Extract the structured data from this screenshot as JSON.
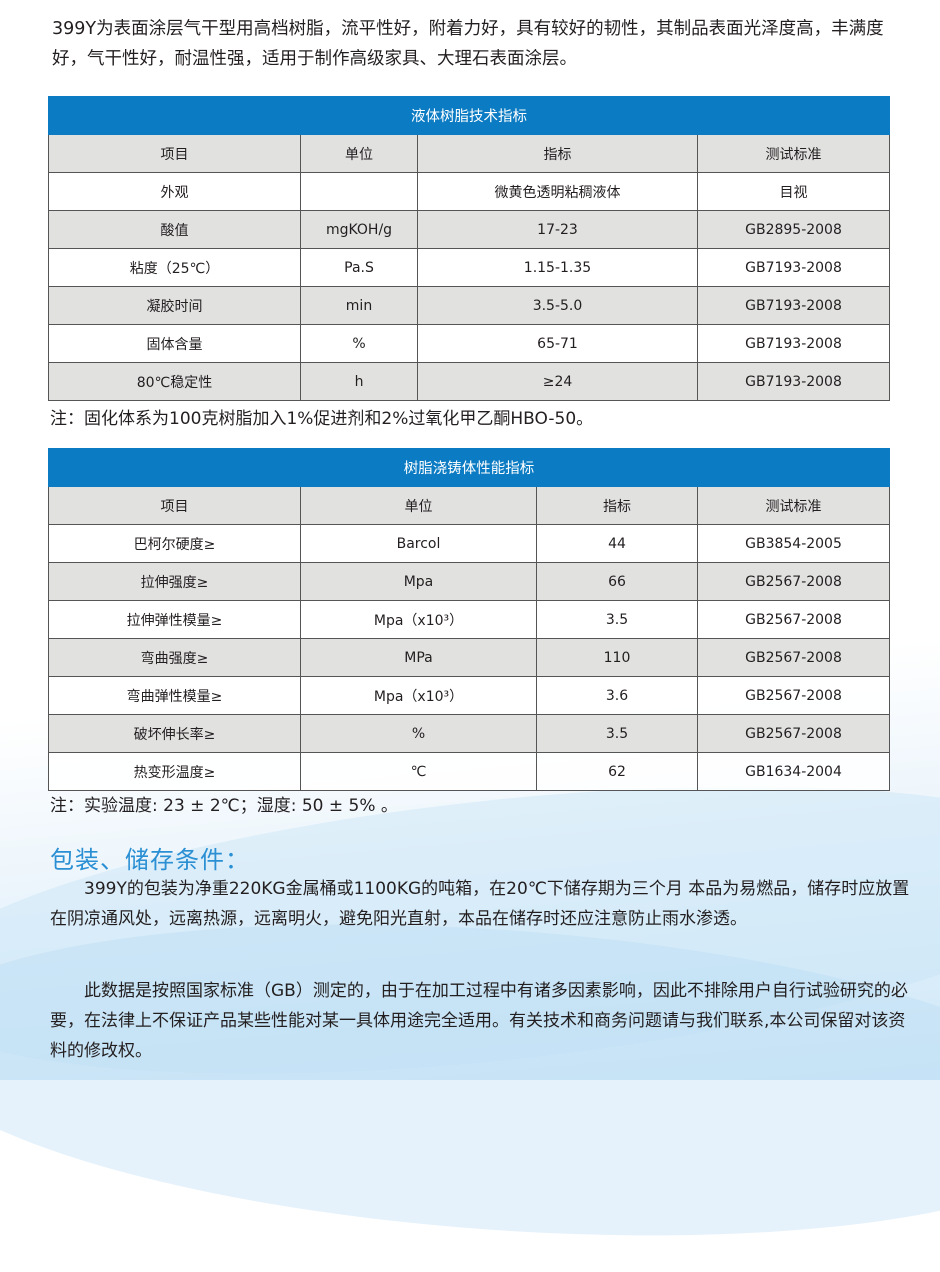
{
  "intro": "399Y为表面涂层气干型用高档树脂，流平性好，附着力好，具有较好的韧性，其制品表面光泽度高，丰满度好，气干性好，耐温性强，适用于制作高级家具、大理石表面涂层。",
  "table1": {
    "title": "液体树脂技术指标",
    "headers": [
      "项目",
      "单位",
      "指标",
      "测试标准"
    ],
    "rows": [
      [
        "外观",
        "",
        "微黄色透明粘稠液体",
        "目视"
      ],
      [
        "酸值",
        "mgKOH/g",
        "17-23",
        "GB2895-2008"
      ],
      [
        "粘度（25℃）",
        "Pa.S",
        "1.15-1.35",
        "GB7193-2008"
      ],
      [
        "凝胶时间",
        "min",
        "3.5-5.0",
        "GB7193-2008"
      ],
      [
        "固体含量",
        "%",
        "65-71",
        "GB7193-2008"
      ],
      [
        "80℃稳定性",
        "h",
        "≥24",
        "GB7193-2008"
      ]
    ],
    "note": "注：固化体系为100克树脂加入1%促进剂和2%过氧化甲乙酮HBO-50。"
  },
  "table2": {
    "title": "树脂浇铸体性能指标",
    "headers": [
      "项目",
      "单位",
      "指标",
      "测试标准"
    ],
    "rows": [
      [
        "巴柯尔硬度≥",
        "Barcol",
        "44",
        "GB3854-2005"
      ],
      [
        "拉伸强度≥",
        "Mpa",
        "66",
        "GB2567-2008"
      ],
      [
        "拉伸弹性模量≥",
        "Mpa（x10³）",
        "3.5",
        "GB2567-2008"
      ],
      [
        "弯曲强度≥",
        "MPa",
        "110",
        "GB2567-2008"
      ],
      [
        "弯曲弹性模量≥",
        "Mpa（x10³）",
        "3.6",
        "GB2567-2008"
      ],
      [
        "破坏伸长率≥",
        "%",
        "3.5",
        "GB2567-2008"
      ],
      [
        "热变形温度≥",
        "℃",
        "62",
        "GB1634-2004"
      ]
    ],
    "note": "注：实验温度: 23 ± 2℃；湿度: 50 ± 5% 。"
  },
  "storage": {
    "heading": "包装、储存条件：",
    "para1": "399Y的包装为净重220KG金属桶或1100KG的吨箱，在20℃下储存期为三个月 本品为易燃品，储存时应放置在阴凉通风处，远离热源，远离明火，避免阳光直射，本品在储存时还应注意防止雨水渗透。",
    "para2": "此数据是按照国家标准（GB）测定的，由于在加工过程中有诸多因素影响，因此不排除用户自行试验研究的必要，在法律上不保证产品某些性能对某一具体用途完全适用。有关技术和商务问题请与我们联系,本公司保留对该资料的修改权。"
  },
  "colors": {
    "header_blue": "#0b7bc3",
    "heading_blue": "#2a8fd3",
    "row_grey": "#e1e1e0"
  }
}
